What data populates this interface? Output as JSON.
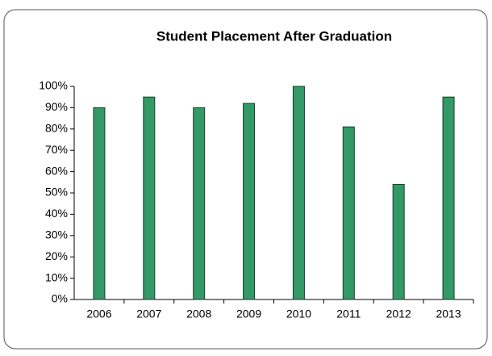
{
  "chart_data": {
    "type": "bar",
    "title": "Student Placement After Graduation",
    "categories": [
      "2006",
      "2007",
      "2008",
      "2009",
      "2010",
      "2011",
      "2012",
      "2013"
    ],
    "values": [
      90,
      95,
      90,
      92,
      100,
      81,
      54,
      95
    ],
    "color": "#339966",
    "ylim": [
      0,
      100
    ],
    "yticks": [
      {
        "value": 0,
        "label": "0%"
      },
      {
        "value": 10,
        "label": "10%"
      },
      {
        "value": 20,
        "label": "20%"
      },
      {
        "value": 30,
        "label": "30%"
      },
      {
        "value": 40,
        "label": "40%"
      },
      {
        "value": 50,
        "label": "50%"
      },
      {
        "value": 60,
        "label": "60%"
      },
      {
        "value": 70,
        "label": "70%"
      },
      {
        "value": 80,
        "label": "80%"
      },
      {
        "value": 90,
        "label": "90%"
      },
      {
        "value": 100,
        "label": "100%"
      }
    ],
    "grid": false
  }
}
